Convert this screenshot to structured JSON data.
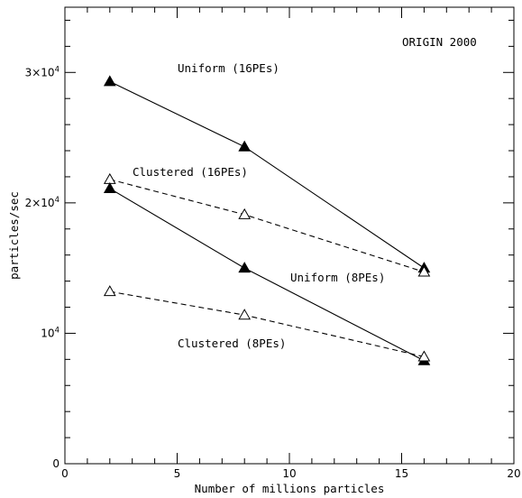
{
  "chart_data": {
    "type": "line",
    "xlabel": "Number of millions particles",
    "ylabel": "particles/sec",
    "xlim": [
      0,
      20
    ],
    "ylim": [
      0,
      35000
    ],
    "xticks": [
      {
        "value": 0,
        "label": "0"
      },
      {
        "value": 5,
        "label": "5"
      },
      {
        "value": 10,
        "label": "10"
      },
      {
        "value": 15,
        "label": "15"
      },
      {
        "value": 20,
        "label": "20"
      }
    ],
    "yticks": [
      {
        "value": 0,
        "base": "0",
        "exp": ""
      },
      {
        "value": 10000,
        "base": "10",
        "exp": "4"
      },
      {
        "value": 20000,
        "base": "2×10",
        "exp": "4"
      },
      {
        "value": 30000,
        "base": "3×10",
        "exp": "4"
      }
    ],
    "annotation": "ORIGIN 2000",
    "series": [
      {
        "name": "Uniform (16PEs)",
        "style": "solid",
        "marker": "filled-triangle",
        "x": [
          2,
          8,
          16
        ],
        "y": [
          29300,
          24300,
          15000
        ]
      },
      {
        "name": "Clustered (16PEs)",
        "style": "dashed",
        "marker": "open-triangle",
        "x": [
          2,
          8,
          16
        ],
        "y": [
          21800,
          19100,
          14700
        ]
      },
      {
        "name": "Uniform (8PEs)",
        "style": "solid",
        "marker": "filled-triangle",
        "x": [
          2,
          8,
          16
        ],
        "y": [
          21100,
          15000,
          7900
        ]
      },
      {
        "name": "Clustered (8PEs)",
        "style": "dashed",
        "marker": "open-triangle",
        "x": [
          2,
          8,
          16
        ],
        "y": [
          13200,
          11400,
          8200
        ]
      }
    ]
  }
}
